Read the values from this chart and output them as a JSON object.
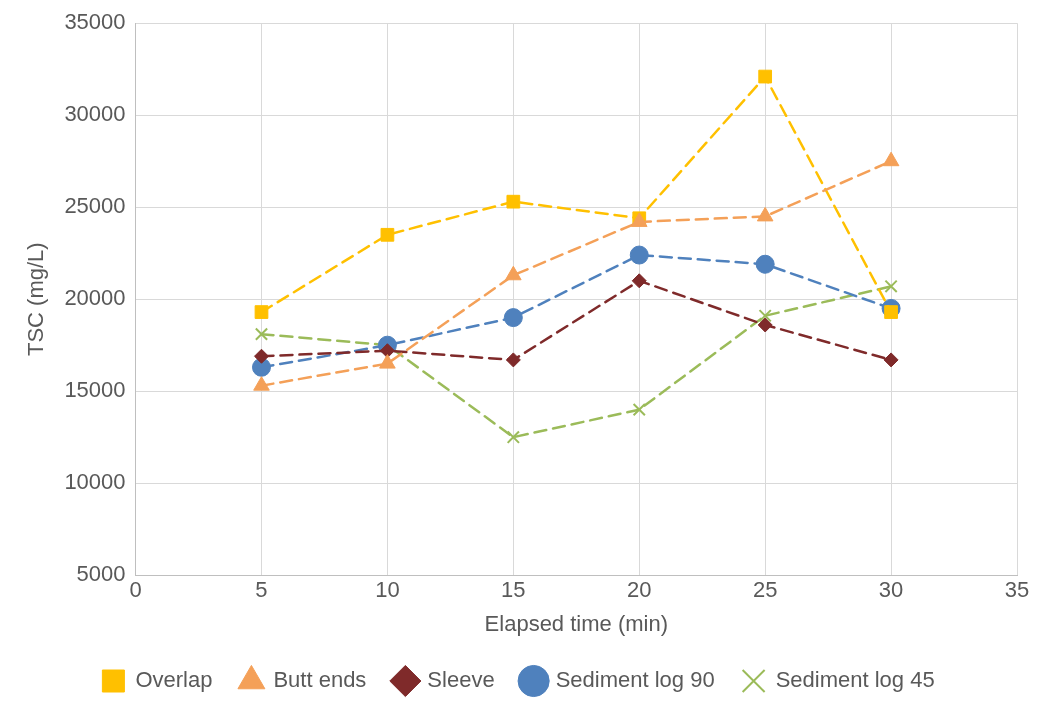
{
  "chart_data": {
    "type": "line",
    "xlabel": "Elapsed time (min)",
    "ylabel": "TSC (mg/L)",
    "x": [
      5,
      10,
      15,
      20,
      25,
      30
    ],
    "xlim": [
      0,
      35
    ],
    "xticks": [
      0,
      5,
      10,
      15,
      20,
      25,
      30,
      35
    ],
    "ylim": [
      5000,
      35000
    ],
    "yticks": [
      5000,
      10000,
      15000,
      20000,
      25000,
      30000,
      35000
    ],
    "grid": true,
    "legend": "bottom",
    "line_style": "dashed",
    "series": [
      {
        "name": "Overlap",
        "color": "#ffc000",
        "marker": "square",
        "values": [
          19300,
          23500,
          25300,
          24400,
          32100,
          19300
        ]
      },
      {
        "name": "Butt ends",
        "color": "#f4a058",
        "marker": "triangle",
        "values": [
          15300,
          16500,
          21300,
          24200,
          24500,
          27500
        ]
      },
      {
        "name": "Sleeve",
        "color": "#7f2a2a",
        "marker": "diamond",
        "values": [
          16900,
          17200,
          16700,
          21000,
          18600,
          16700
        ]
      },
      {
        "name": "Sediment log 90",
        "color": "#4f81bd",
        "marker": "circle",
        "values": [
          16300,
          17500,
          19000,
          22400,
          21900,
          19500
        ]
      },
      {
        "name": "Sediment log 45",
        "color": "#9bbb59",
        "marker": "cross",
        "values": [
          18100,
          17500,
          12500,
          14000,
          19100,
          20700
        ]
      }
    ]
  }
}
